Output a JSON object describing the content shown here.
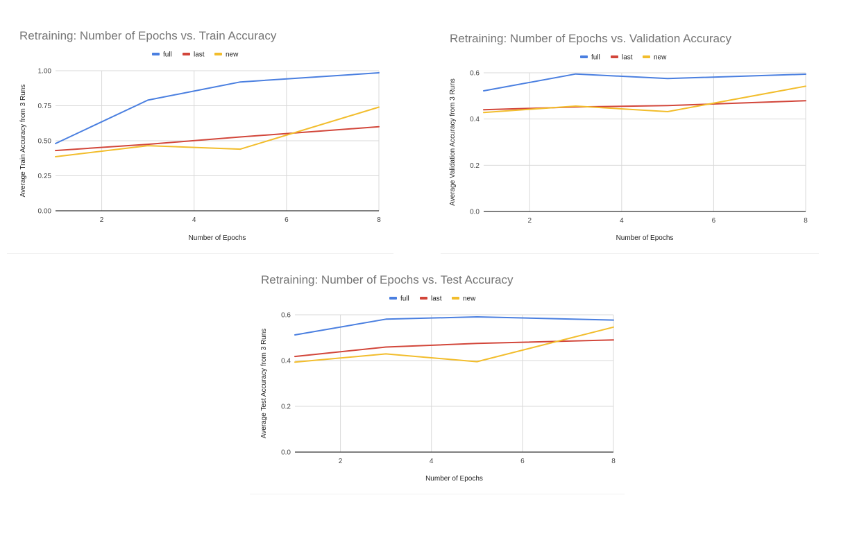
{
  "chart_data": [
    {
      "id": "train",
      "type": "line",
      "title": "Retraining: Number of Epochs vs. Train Accuracy",
      "xlabel": "Number of Epochs",
      "ylabel": "Average Train Accuracy from 3 Runs",
      "xlim": [
        1,
        8
      ],
      "ylim": [
        0,
        1
      ],
      "xticks": [
        2,
        4,
        6,
        8
      ],
      "yticks": [
        0,
        0.25,
        0.5,
        0.75,
        1.0
      ],
      "ytick_labels": [
        "0.00",
        "0.25",
        "0.50",
        "0.75",
        "1.00"
      ],
      "grid": true,
      "legend_position": "top-center",
      "x": [
        1,
        3,
        5,
        8
      ],
      "series": [
        {
          "name": "full",
          "color": "#4a7fe0",
          "values": [
            0.48,
            0.79,
            0.92,
            0.985
          ]
        },
        {
          "name": "last",
          "color": "#d2463a",
          "values": [
            0.43,
            0.475,
            0.527,
            0.6
          ]
        },
        {
          "name": "new",
          "color": "#f2bd2c",
          "values": [
            0.386,
            0.465,
            0.44,
            0.74
          ]
        }
      ]
    },
    {
      "id": "validation",
      "type": "line",
      "title": "Retraining: Number of Epochs vs. Validation Accuracy",
      "xlabel": "Number of Epochs",
      "ylabel": "Average Validation Accuracy from 3 Runs",
      "xlim": [
        1,
        8
      ],
      "ylim": [
        0,
        0.6
      ],
      "xticks": [
        2,
        4,
        6,
        8
      ],
      "yticks": [
        0,
        0.2,
        0.4,
        0.6
      ],
      "ytick_labels": [
        "0.0",
        "0.2",
        "0.4",
        "0.6"
      ],
      "grid": true,
      "legend_position": "top-center",
      "x": [
        1,
        3,
        5,
        8
      ],
      "series": [
        {
          "name": "full",
          "color": "#4a7fe0",
          "values": [
            0.522,
            0.595,
            0.575,
            0.594
          ]
        },
        {
          "name": "last",
          "color": "#d2463a",
          "values": [
            0.44,
            0.452,
            0.458,
            0.479
          ]
        },
        {
          "name": "new",
          "color": "#f2bd2c",
          "values": [
            0.428,
            0.456,
            0.432,
            0.542
          ]
        }
      ]
    },
    {
      "id": "test",
      "type": "line",
      "title": "Retraining: Number of Epochs vs. Test Accuracy",
      "xlabel": "Number of Epochs",
      "ylabel": "Average Test Accuracy from 3 Runs",
      "xlim": [
        1,
        8
      ],
      "ylim": [
        0,
        0.6
      ],
      "xticks": [
        2,
        4,
        6,
        8
      ],
      "yticks": [
        0,
        0.2,
        0.4,
        0.6
      ],
      "ytick_labels": [
        "0.0",
        "0.2",
        "0.4",
        "0.6"
      ],
      "grid": true,
      "legend_position": "top-center",
      "x": [
        1,
        3,
        5,
        8
      ],
      "series": [
        {
          "name": "full",
          "color": "#4a7fe0",
          "values": [
            0.512,
            0.581,
            0.591,
            0.577
          ]
        },
        {
          "name": "last",
          "color": "#d2463a",
          "values": [
            0.418,
            0.459,
            0.475,
            0.49
          ]
        },
        {
          "name": "new",
          "color": "#f2bd2c",
          "values": [
            0.393,
            0.429,
            0.395,
            0.546
          ]
        }
      ]
    }
  ]
}
